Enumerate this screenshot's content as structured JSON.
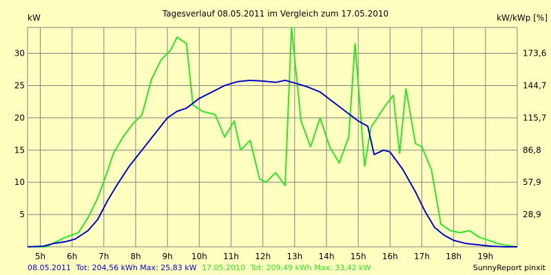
{
  "chart_data": {
    "type": "line",
    "title": "Tagesverlauf 08.05.2011 im Vergleich zum 17.05.2010",
    "ylabel_left": "kW",
    "ylabel_right": "kW/kWp [%]",
    "xlim": [
      4.6,
      20.0
    ],
    "ylim": [
      0,
      34
    ],
    "left_ticks": [
      "5",
      "10",
      "15",
      "20",
      "25",
      "30"
    ],
    "left_tick_values": [
      5,
      10,
      15,
      20,
      25,
      30
    ],
    "right_ticks": [
      "28,9",
      "57,9",
      "86,8",
      "115,7",
      "144,7",
      "173,6"
    ],
    "x_ticks": [
      "5h",
      "6h",
      "7h",
      "8h",
      "9h",
      "10h",
      "11h",
      "12h",
      "13h",
      "14h",
      "15h",
      "16h",
      "17h",
      "18h",
      "19h"
    ],
    "x_tick_values": [
      5,
      6,
      7,
      8,
      9,
      10,
      11,
      12,
      13,
      14,
      15,
      16,
      17,
      18,
      19
    ],
    "grid": true,
    "series": [
      {
        "name": "08.05.2011",
        "color": "#0000c8",
        "x": [
          4.6,
          5.1,
          5.4,
          5.8,
          6.1,
          6.5,
          6.8,
          7.1,
          7.4,
          7.8,
          8.2,
          8.6,
          9.0,
          9.3,
          9.6,
          10.0,
          10.4,
          10.8,
          11.2,
          11.6,
          12.0,
          12.4,
          12.7,
          13.0,
          13.4,
          13.8,
          14.2,
          14.6,
          15.0,
          15.3,
          15.5,
          15.8,
          16.0,
          16.4,
          16.8,
          17.1,
          17.4,
          17.7,
          18.0,
          18.4,
          18.8,
          19.2,
          19.6,
          20.0
        ],
        "y": [
          0.0,
          0.1,
          0.5,
          0.8,
          1.2,
          2.5,
          4.2,
          7.0,
          9.5,
          12.5,
          15.0,
          17.5,
          20.0,
          21.0,
          21.5,
          23.0,
          24.0,
          25.0,
          25.6,
          25.8,
          25.7,
          25.5,
          25.8,
          25.4,
          24.8,
          24.0,
          22.5,
          21.0,
          19.5,
          18.7,
          14.3,
          15.0,
          14.7,
          12.0,
          8.5,
          5.5,
          3.0,
          1.8,
          1.0,
          0.5,
          0.3,
          0.1,
          0.0,
          0.0
        ]
      },
      {
        "name": "17.05.2010",
        "color": "#28e628",
        "x": [
          4.6,
          5.2,
          5.5,
          5.8,
          6.2,
          6.5,
          6.8,
          7.1,
          7.3,
          7.6,
          7.9,
          8.2,
          8.5,
          8.8,
          9.1,
          9.3,
          9.6,
          9.8,
          10.1,
          10.5,
          10.8,
          11.1,
          11.3,
          11.6,
          11.9,
          12.1,
          12.4,
          12.7,
          12.9,
          13.2,
          13.5,
          13.8,
          14.1,
          14.4,
          14.7,
          14.9,
          15.2,
          15.4,
          15.8,
          16.1,
          16.3,
          16.5,
          16.8,
          17.0,
          17.3,
          17.6,
          17.9,
          18.2,
          18.5,
          18.8,
          19.1,
          19.4,
          19.7,
          20.0
        ],
        "y": [
          0.0,
          0.0,
          0.8,
          1.5,
          2.2,
          4.5,
          7.5,
          11.5,
          14.5,
          17.0,
          19.0,
          20.5,
          26.0,
          29.0,
          30.5,
          32.5,
          31.5,
          22.0,
          21.0,
          20.5,
          17.0,
          19.5,
          15.0,
          16.5,
          10.5,
          10.0,
          11.5,
          9.5,
          34.0,
          19.5,
          15.5,
          20.0,
          15.5,
          13.0,
          17.0,
          31.5,
          12.5,
          18.5,
          21.5,
          23.5,
          14.5,
          24.5,
          16.0,
          15.5,
          12.0,
          3.5,
          2.5,
          2.2,
          2.5,
          1.5,
          1.0,
          0.5,
          0.2,
          0.0
        ]
      }
    ]
  },
  "footer": {
    "series1_date": "08.05.2011",
    "series1_stats": "Tot: 204,56 kWh Max: 25,83 kW",
    "series2_date": "17.05.2010",
    "series2_stats": "Tot: 209,49 kWh Max: 33,42 kW",
    "credit": "SunnyReport pinxit",
    "series1_color": "#0000c8",
    "series2_color": "#28e628"
  }
}
